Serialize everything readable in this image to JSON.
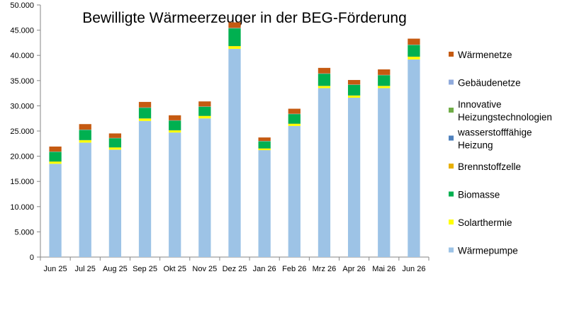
{
  "chart_data": {
    "type": "bar",
    "stacked": true,
    "title": "Bewilligte Wärmeerzeuger in der BEG-Förderung",
    "xlabel": "",
    "ylabel": "",
    "ylim": [
      0,
      50000
    ],
    "yticks": [
      0,
      5000,
      10000,
      15000,
      20000,
      25000,
      30000,
      35000,
      40000,
      45000,
      50000
    ],
    "ytick_labels": [
      "0",
      "5.000",
      "10.000",
      "15.000",
      "20.000",
      "25.000",
      "30.000",
      "35.000",
      "40.000",
      "45.000",
      "50.000"
    ],
    "grid": false,
    "legend_position": "right",
    "categories": [
      "Jun 25",
      "Jul 25",
      "Aug 25",
      "Sep 25",
      "Okt 25",
      "Nov 25",
      "Dez 25",
      "Jan 26",
      "Feb 26",
      "Mrz 26",
      "Apr 26",
      "Mai 26",
      "Jun 26"
    ],
    "series": [
      {
        "name": "Wärmepumpe",
        "color": "#9dc3e6",
        "values": [
          18500,
          22700,
          21300,
          27000,
          24700,
          27500,
          41300,
          21200,
          26000,
          33500,
          31600,
          33500,
          39200
        ]
      },
      {
        "name": "Solarthermie",
        "color": "#ffff00",
        "values": [
          400,
          450,
          400,
          450,
          400,
          450,
          500,
          300,
          400,
          400,
          400,
          400,
          500
        ]
      },
      {
        "name": "Brennstoffzelle",
        "color": "#e8b000",
        "values": [
          50,
          50,
          50,
          50,
          50,
          50,
          50,
          50,
          50,
          50,
          50,
          50,
          50
        ]
      },
      {
        "name": "Biomasse",
        "color": "#00b050",
        "values": [
          1900,
          2000,
          1800,
          2100,
          1900,
          1800,
          3500,
          1400,
          1900,
          2400,
          2100,
          2100,
          2300
        ]
      },
      {
        "name": "wasserstofffähige Heizung",
        "color": "#4f81bd",
        "values": [
          30,
          30,
          30,
          30,
          30,
          30,
          40,
          30,
          30,
          30,
          30,
          30,
          30
        ]
      },
      {
        "name": "Innovative Heizungstechnologien",
        "color": "#70ad47",
        "values": [
          20,
          20,
          20,
          20,
          20,
          20,
          30,
          20,
          20,
          20,
          20,
          20,
          20
        ]
      },
      {
        "name": "Gebäudenetze",
        "color": "#8faadc",
        "values": [
          20,
          20,
          20,
          20,
          20,
          20,
          30,
          20,
          20,
          20,
          20,
          20,
          20
        ]
      },
      {
        "name": "Wärmenetze",
        "color": "#c55a11",
        "values": [
          1000,
          1100,
          900,
          1100,
          1000,
          1000,
          1100,
          700,
          1000,
          1100,
          900,
          1100,
          1200
        ]
      }
    ],
    "legend_order": [
      "Wärmenetze",
      "Gebäudenetze",
      "Innovative Heizungstechnologien",
      "wasserstofffähige Heizung",
      "Brennstoffzelle",
      "Biomasse",
      "Solarthermie",
      "Wärmepumpe"
    ]
  }
}
